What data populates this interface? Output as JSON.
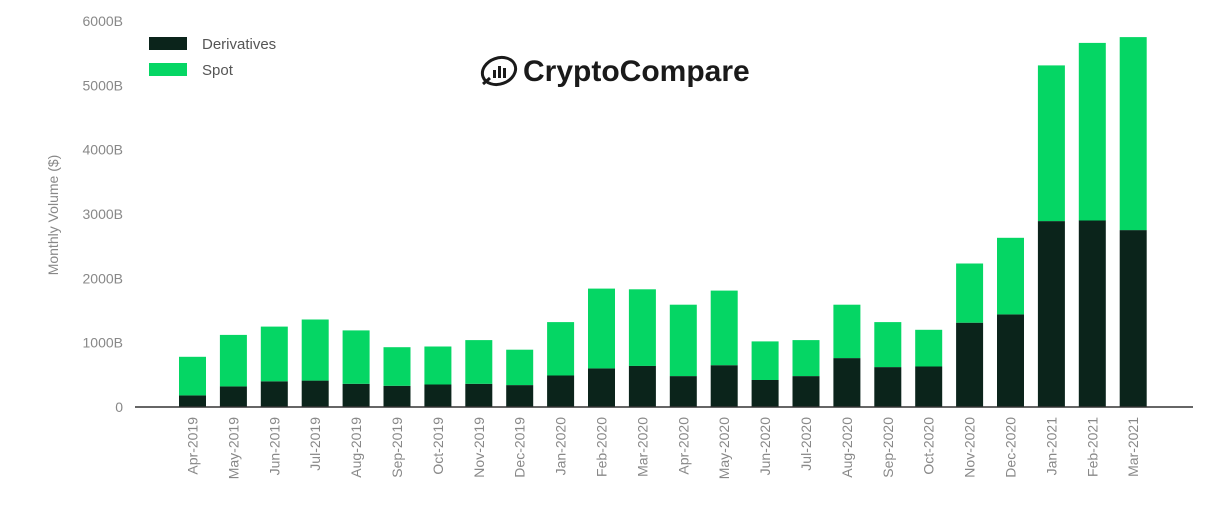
{
  "chart_data": {
    "type": "bar",
    "stacked": true,
    "ylabel": "Monthly Volume ($)",
    "ylim": [
      0,
      6000
    ],
    "yticks": [
      "0",
      "1000B",
      "2000B",
      "3000B",
      "4000B",
      "5000B",
      "6000B"
    ],
    "legend_position": "top-left",
    "watermark": "CryptoCompare",
    "categories": [
      "Apr-2019",
      "May-2019",
      "Jun-2019",
      "Jul-2019",
      "Aug-2019",
      "Sep-2019",
      "Oct-2019",
      "Nov-2019",
      "Dec-2019",
      "Jan-2020",
      "Feb-2020",
      "Mar-2020",
      "Apr-2020",
      "May-2020",
      "Jun-2020",
      "Jul-2020",
      "Aug-2020",
      "Sep-2020",
      "Oct-2020",
      "Nov-2020",
      "Dec-2020",
      "Jan-2021",
      "Feb-2021",
      "Mar-2021"
    ],
    "series": [
      {
        "name": "Derivatives",
        "color": "#0b241b",
        "values": [
          180,
          320,
          400,
          410,
          360,
          330,
          350,
          360,
          340,
          490,
          600,
          640,
          480,
          650,
          420,
          480,
          760,
          620,
          630,
          1310,
          1440,
          2890,
          2900,
          2750
        ]
      },
      {
        "name": "Spot",
        "color": "#05d664",
        "values": [
          600,
          800,
          850,
          950,
          830,
          600,
          590,
          680,
          550,
          830,
          1240,
          1190,
          1110,
          1160,
          600,
          560,
          830,
          700,
          570,
          920,
          1190,
          2420,
          2760,
          3000
        ]
      }
    ]
  }
}
